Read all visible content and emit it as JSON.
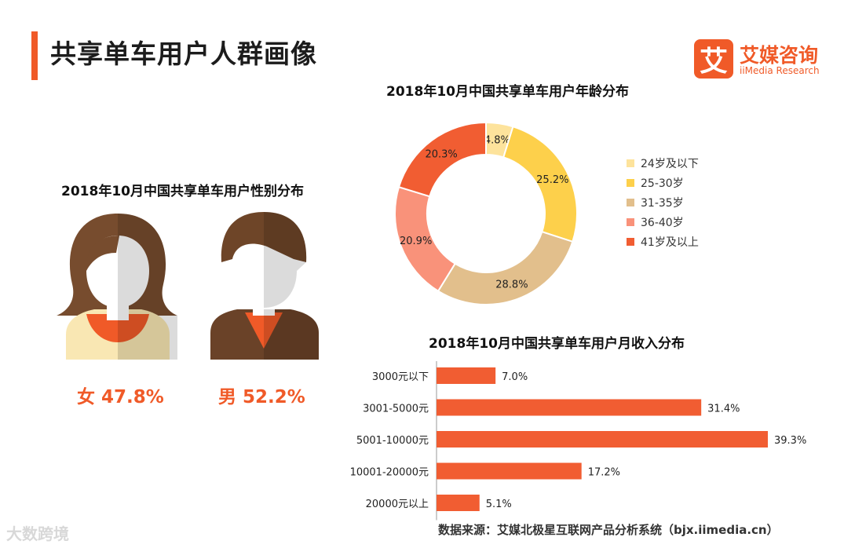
{
  "header": {
    "title": "共享单车用户人群画像"
  },
  "logo": {
    "mark": "艾",
    "name_cn": "艾媒咨询",
    "name_en": "iiMedia Research"
  },
  "colors": {
    "accent": "#f05a28"
  },
  "chart_data": [
    {
      "type": "pie",
      "title": "2018年10月中国共享单车用户性别分布",
      "categories": [
        "女",
        "男"
      ],
      "values": [
        47.8,
        52.2
      ],
      "labels": [
        "女 47.8%",
        "男 52.2%"
      ],
      "colors": {
        "female_hair": "#774c2e",
        "male_hair": "#6e4528",
        "face": "#ffffff",
        "female_clothes": "#f9e7b3",
        "neck": "#f05a28",
        "male_clothes": "#6a4228"
      }
    },
    {
      "type": "pie",
      "title": "2018年10月中国共享单车用户年龄分布",
      "categories": [
        "24岁及以下",
        "25-30岁",
        "31-35岁",
        "36-40岁",
        "41岁及以上"
      ],
      "values": [
        4.8,
        25.2,
        28.8,
        20.9,
        20.3
      ],
      "labels": [
        "4.8%",
        "25.2%",
        "28.8%",
        "20.9%",
        "20.3%"
      ],
      "colors": [
        "#fde39c",
        "#fdd04b",
        "#e2bf8c",
        "#f9927a",
        "#f15d32"
      ],
      "legend": "right",
      "donut": true
    },
    {
      "type": "bar",
      "orientation": "horizontal",
      "title": "2018年10月中国共享单车用户月收入分布",
      "categories": [
        "3000元以下",
        "3001-5000元",
        "5001-10000元",
        "10001-20000元",
        "20000元以上"
      ],
      "values": [
        7.0,
        31.4,
        39.3,
        17.2,
        5.1
      ],
      "labels": [
        "7.0%",
        "31.4%",
        "39.3%",
        "17.2%",
        "5.1%"
      ],
      "color": "#f15d32",
      "xlim": [
        0,
        39.3
      ]
    }
  ],
  "footer": {
    "source": "数据来源：艾媒北极星互联网产品分析系统（bjx.iimedia.cn）",
    "watermark": "大数跨境"
  }
}
